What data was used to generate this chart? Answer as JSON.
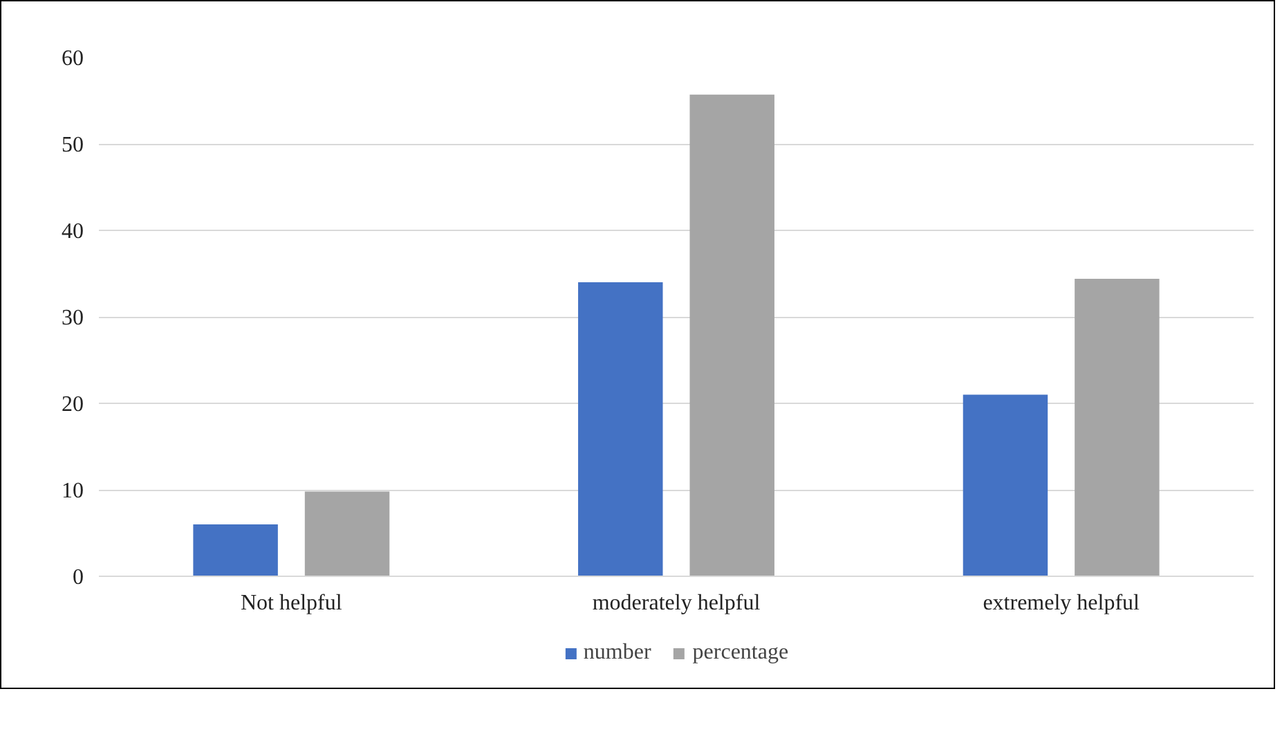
{
  "chart_data": {
    "type": "bar",
    "categories": [
      "Not helpful",
      "moderately helpful",
      "extremely helpful"
    ],
    "series": [
      {
        "name": "number",
        "color": "#4472c4",
        "values": [
          6,
          34,
          21
        ]
      },
      {
        "name": "percentage",
        "color": "#a5a5a5",
        "values": [
          9.8,
          55.7,
          34.4
        ]
      }
    ],
    "ylim": [
      0,
      60
    ],
    "yticks": [
      0,
      10,
      20,
      30,
      40,
      50,
      60
    ],
    "grid": "y",
    "legend": "bottom"
  }
}
